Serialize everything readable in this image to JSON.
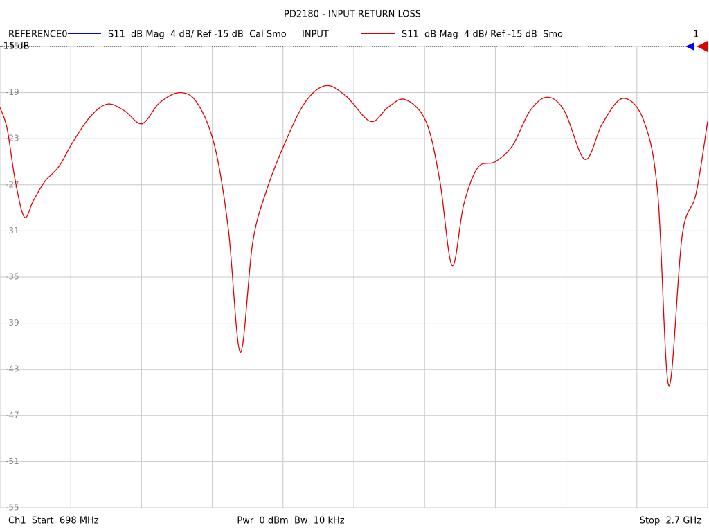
{
  "chart_data": {
    "type": "line",
    "title": "PD2180 - INPUT RETURN LOSS",
    "reference_trace": {
      "name": "REFERENCE0",
      "color": "#0000ff",
      "description": "S11  dB Mag  4 dB/ Ref -15 dB  Cal Smo"
    },
    "series": [
      {
        "name": "INPUT",
        "color": "#e00000",
        "description": "S11  dB Mag  4 dB/ Ref -15 dB  Smo",
        "values": [
          -20.3,
          -22.1,
          -26.6,
          -29.8,
          -28.4,
          -26.7,
          -25.4,
          -23.3,
          -21.1,
          -20.0,
          -20.6,
          -21.7,
          -19.9,
          -19.0,
          -19.9,
          -23.6,
          -30.8,
          -41.5,
          -32.0,
          -27.5,
          -23.6,
          -19.9,
          -18.4,
          -19.3,
          -21.5,
          -20.3,
          -19.6,
          -21.5,
          -26.6,
          -34.0,
          -28.7,
          -25.5,
          -25.0,
          -23.6,
          -20.6,
          -19.4,
          -20.6,
          -24.8,
          -21.7,
          -19.5,
          -21.5,
          -27.8,
          -44.4,
          -31.4,
          -27.8,
          -21.5
        ]
      }
    ],
    "x": [
      698,
      718,
      741,
      767,
      792,
      825,
      865,
      904,
      953,
      1002,
      1051,
      1100,
      1149,
      1207,
      1256,
      1305,
      1344,
      1378,
      1413,
      1452,
      1501,
      1560,
      1619,
      1677,
      1746,
      1795,
      1844,
      1903,
      1942,
      1977,
      2010,
      2050,
      2099,
      2148,
      2197,
      2246,
      2295,
      2353,
      2402,
      2461,
      2520,
      2559,
      2590,
      2628,
      2667,
      2700
    ],
    "xlim": [
      698,
      2700
    ],
    "xticks": [
      698,
      898.2,
      1098.4,
      1298.6,
      1498.8,
      1699,
      1899.2,
      2099.4,
      2299.6,
      2499.8,
      2700
    ],
    "ylim": [
      -55,
      -15
    ],
    "yticks": [
      -15,
      -19,
      -23,
      -27,
      -31,
      -35,
      -39,
      -43,
      -47,
      -51,
      -55
    ],
    "grid": true,
    "ref_value": -15,
    "ref_label": "-15 dB",
    "marker_label": "1",
    "footer": {
      "start": "Ch1  Start  698 MHz",
      "power": "Pwr  0 dBm  Bw  10 kHz",
      "stop": "Stop  2.7 GHz"
    }
  }
}
